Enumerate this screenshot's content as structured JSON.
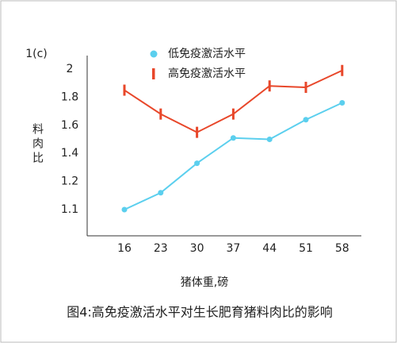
{
  "chart_data": {
    "type": "line",
    "y_label_top": "1(c)",
    "y_label": "料肉比",
    "x_label": "猪体重,磅",
    "caption": "图4:高免疫激活水平对生长肥育猪料肉比的影响",
    "categories": [
      "16",
      "23",
      "30",
      "37",
      "44",
      "51",
      "58"
    ],
    "series": [
      {
        "name": "低免疫激活水平",
        "color": "#5bcfee",
        "marker": "circle",
        "values": [
          1.1,
          1.16,
          1.33,
          1.51,
          1.5,
          1.64,
          1.76
        ]
      },
      {
        "name": "高免疫激活水平",
        "color": "#e8472a",
        "marker": "bar",
        "values": [
          1.85,
          1.68,
          1.55,
          1.68,
          1.88,
          1.87,
          1.99
        ]
      }
    ],
    "yticks": [
      1.1,
      1.2,
      1.4,
      1.6,
      1.8,
      2.0
    ]
  }
}
